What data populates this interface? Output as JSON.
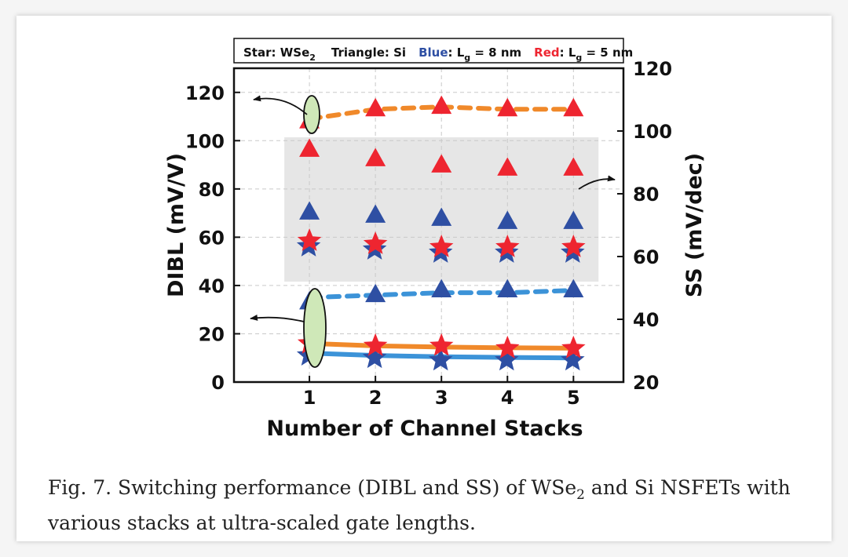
{
  "figure": {
    "caption_line1_a": "Fig. 7.  Switching performance (DIBL and SS) of WSe",
    "caption_line1_sub": "2",
    "caption_line1_b": " and Si NSFETs with",
    "caption_line2": "various stacks at ultra-scaled gate lengths."
  },
  "legend": {
    "star_a": "Star: WSe",
    "star_sub": "2",
    "triangle": "Triangle: Si",
    "blue_word": "Blue",
    "blue_rest_a": ": L",
    "blue_sub": "g",
    "blue_rest_b": " = 8 nm",
    "red_word": "Red",
    "red_rest_a": ": L",
    "red_sub": "g",
    "red_rest_b": " = 5 nm"
  },
  "colors": {
    "blue": "#2e4fa3",
    "red": "#ee2530",
    "orange": "#f0892a",
    "lightblue": "#3c93d8",
    "shade": "#e6e6e6",
    "ellipse": "#cfe8b8"
  },
  "chart_data": {
    "type": "scatter",
    "xlabel": "Number of Channel Stacks",
    "ylabel": "DIBL (mV/V)",
    "y2label": "SS (mV/dec)",
    "x": [
      1,
      2,
      3,
      4,
      5
    ],
    "xticks": [
      "1",
      "2",
      "3",
      "4",
      "5"
    ],
    "ylim": [
      0,
      130
    ],
    "yticks": [
      "0",
      "20",
      "40",
      "60",
      "80",
      "100",
      "120"
    ],
    "y2lim": [
      20,
      120
    ],
    "y2ticks": [
      "20",
      "40",
      "60",
      "80",
      "100",
      "120"
    ],
    "grid": true,
    "series": [
      {
        "axis": "right",
        "marker": "triangle",
        "color": "red",
        "values": [
          94,
          91,
          89,
          88,
          88
        ]
      },
      {
        "axis": "right",
        "marker": "triangle",
        "color": "blue",
        "values": [
          74,
          73,
          72,
          71,
          71
        ]
      },
      {
        "axis": "right",
        "marker": "star",
        "color": "blue",
        "values": [
          64,
          63,
          62,
          62,
          62
        ]
      },
      {
        "axis": "right",
        "marker": "star",
        "color": "red",
        "values": [
          65,
          64,
          63,
          63,
          63
        ]
      },
      {
        "axis": "left",
        "marker": "triangle",
        "color": "red",
        "values": [
          108,
          113,
          114,
          113,
          113
        ]
      },
      {
        "axis": "left",
        "marker": "triangle",
        "color": "blue",
        "values": [
          33,
          36,
          38,
          38,
          38
        ]
      },
      {
        "axis": "left",
        "marker": "star",
        "color": "blue",
        "values": [
          12,
          11,
          10,
          10,
          10
        ]
      },
      {
        "axis": "left",
        "marker": "star",
        "color": "red",
        "values": [
          16,
          15,
          15,
          14,
          14
        ]
      }
    ],
    "trend_lines": [
      {
        "axis": "left",
        "style": "dashed",
        "color": "orange",
        "values": [
          109,
          113,
          114,
          113,
          113
        ]
      },
      {
        "axis": "left",
        "style": "dashed",
        "color": "lightblue",
        "values": [
          35,
          36,
          37,
          37,
          38
        ]
      },
      {
        "axis": "left",
        "style": "solid",
        "color": "orange",
        "values": [
          16,
          15,
          14.5,
          14.2,
          14
        ]
      },
      {
        "axis": "left",
        "style": "solid",
        "color": "lightblue",
        "values": [
          12,
          11,
          10.5,
          10.2,
          10
        ]
      }
    ],
    "shaded_region": {
      "x": [
        0.62,
        5.38
      ],
      "y2": [
        52,
        98
      ]
    }
  }
}
